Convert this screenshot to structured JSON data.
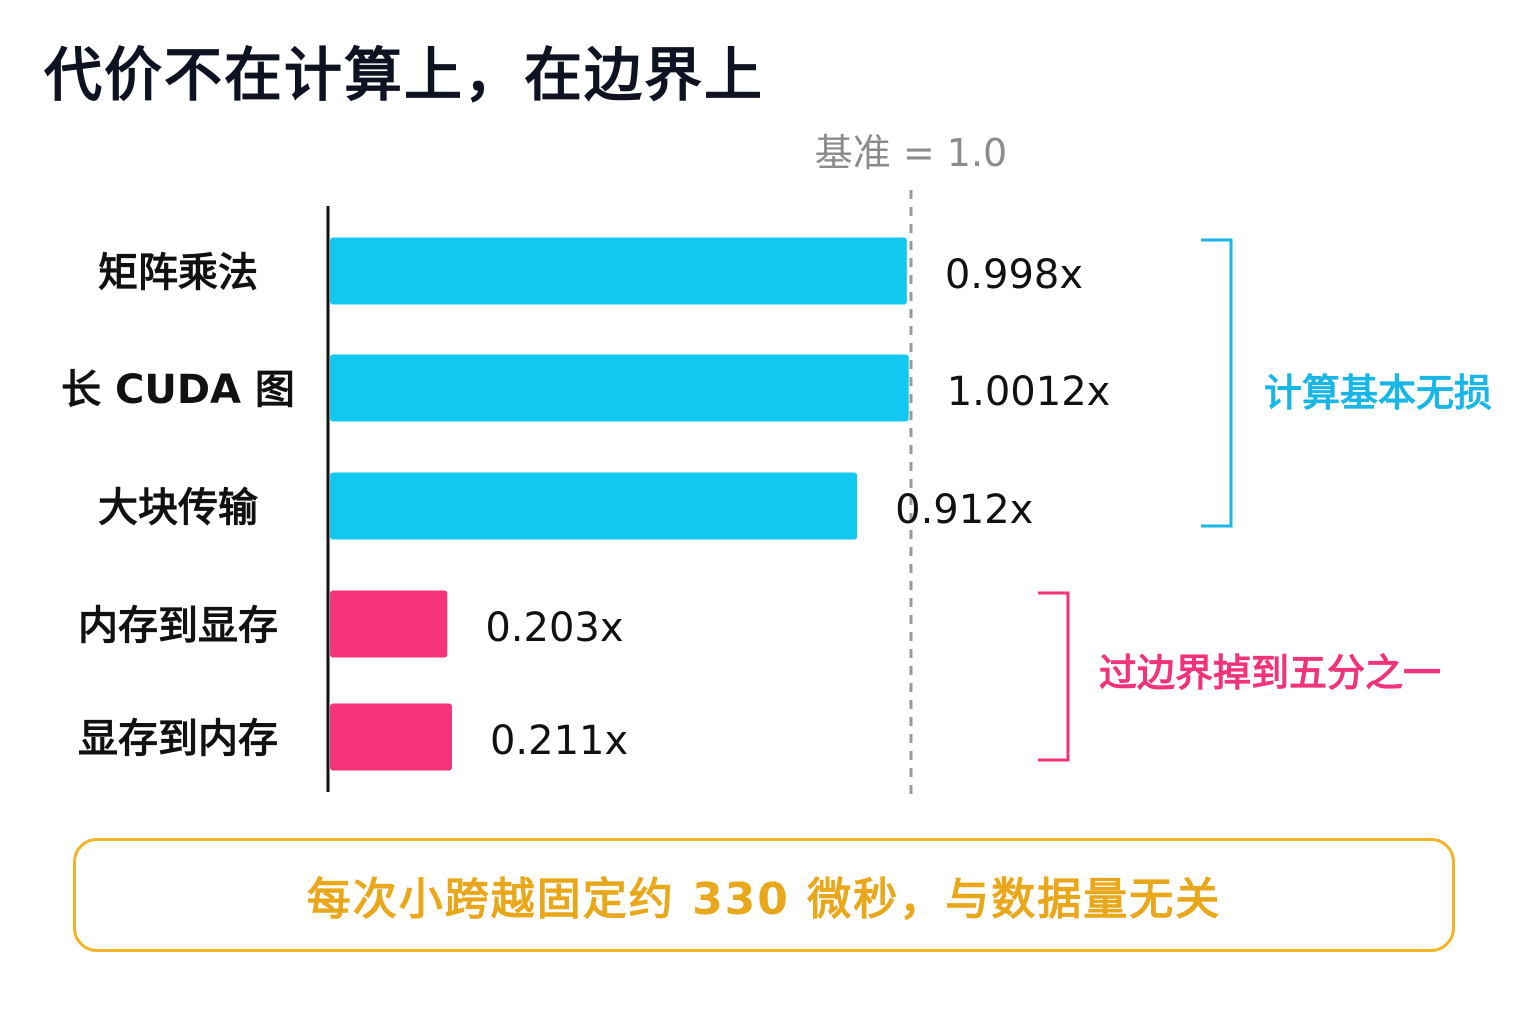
{
  "title": "代价不在计算上，在边界上",
  "chart_data": {
    "type": "bar",
    "orientation": "horizontal",
    "categories": [
      "矩阵乘法",
      "长 CUDA 图",
      "大块传输",
      "内存到显存",
      "显存到内存"
    ],
    "values": [
      0.998,
      1.0012,
      0.912,
      0.203,
      0.211
    ],
    "value_labels": [
      "0.998x",
      "1.0012x",
      "0.912x",
      "0.203x",
      "0.211x"
    ],
    "bar_colors": [
      "#13c8ee",
      "#13c8ee",
      "#13c8ee",
      "#f5337a",
      "#f5337a"
    ],
    "xlim": [
      0,
      1.1
    ],
    "reference_line": {
      "value": 1.0,
      "label": "基准 = 1.0",
      "style": "dashed",
      "color": "#9a9a9a"
    },
    "grid": false,
    "groups": [
      {
        "label": "计算基本无损",
        "members": [
          0,
          1,
          2
        ],
        "color": "#1ab7e6"
      },
      {
        "label": "过边界掉到五分之一",
        "members": [
          3,
          4
        ],
        "color": "#f0337a"
      }
    ]
  },
  "footer": {
    "text": "每次小跨越固定约 330 微秒，与数据量无关",
    "color": "#e9a81c"
  }
}
